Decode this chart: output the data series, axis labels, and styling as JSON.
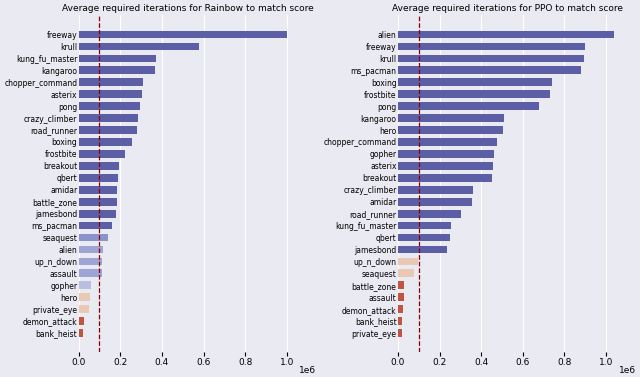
{
  "rainbow_title": "Average required iterations for Rainbow to match score",
  "ppo_title": "Average required iterations for PPO to match score",
  "rainbow_data": {
    "freeway": 1000000,
    "krull": 580000,
    "kung_fu_master": 370000,
    "kangaroo": 365000,
    "chopper_command": 310000,
    "asterix": 305000,
    "pong": 295000,
    "crazy_climber": 285000,
    "road_runner": 280000,
    "boxing": 255000,
    "frostbite": 225000,
    "breakout": 195000,
    "qbert": 190000,
    "amidar": 185000,
    "battle_zone": 185000,
    "jamesbond": 180000,
    "ms_pacman": 160000,
    "seaquest": 140000,
    "alien": 115000,
    "up_n_down": 110000,
    "assault": 110000,
    "gopher": 60000,
    "hero": 55000,
    "private_eye": 50000,
    "demon_attack": 25000,
    "bank_heist": 22000
  },
  "rainbow_colors": {
    "freeway": "#5c5fa5",
    "krull": "#5c5fa5",
    "kung_fu_master": "#5c5fa5",
    "kangaroo": "#5c5fa5",
    "chopper_command": "#5c5fa5",
    "asterix": "#5c5fa5",
    "pong": "#5c5fa5",
    "crazy_climber": "#5c5fa5",
    "road_runner": "#5c5fa5",
    "boxing": "#5c5fa5",
    "frostbite": "#5c5fa5",
    "breakout": "#5c5fa5",
    "qbert": "#5c5fa5",
    "amidar": "#5c5fa5",
    "battle_zone": "#5c5fa5",
    "jamesbond": "#5c5fa5",
    "ms_pacman": "#5c5fa5",
    "seaquest": "#8c93cc",
    "alien": "#9ea5d4",
    "up_n_down": "#9ea5d4",
    "assault": "#9ea5d4",
    "gopher": "#b8bfdf",
    "hero": "#eac9b4",
    "private_eye": "#eac9b4",
    "demon_attack": "#c25540",
    "bank_heist": "#c25540"
  },
  "ppo_data": {
    "alien": 1040000,
    "freeway": 900000,
    "krull": 895000,
    "ms_pacman": 880000,
    "boxing": 740000,
    "frostbite": 730000,
    "pong": 680000,
    "kangaroo": 510000,
    "hero": 505000,
    "chopper_command": 475000,
    "gopher": 460000,
    "asterix": 455000,
    "breakout": 450000,
    "crazy_climber": 360000,
    "amidar": 355000,
    "road_runner": 305000,
    "kung_fu_master": 255000,
    "qbert": 250000,
    "jamesbond": 235000,
    "up_n_down": 95000,
    "seaquest": 75000,
    "battle_zone": 30000,
    "assault": 28000,
    "demon_attack": 22000,
    "bank_heist": 20000,
    "private_eye": 18000
  },
  "ppo_colors": {
    "alien": "#5c5fa5",
    "freeway": "#5c5fa5",
    "krull": "#5c5fa5",
    "ms_pacman": "#5c5fa5",
    "boxing": "#5c5fa5",
    "frostbite": "#5c5fa5",
    "pong": "#5c5fa5",
    "kangaroo": "#5c5fa5",
    "hero": "#5c5fa5",
    "chopper_command": "#5c5fa5",
    "gopher": "#5c5fa5",
    "asterix": "#5c5fa5",
    "breakout": "#5c5fa5",
    "crazy_climber": "#5c5fa5",
    "amidar": "#5c5fa5",
    "road_runner": "#5c5fa5",
    "kung_fu_master": "#5c5fa5",
    "qbert": "#5c5fa5",
    "jamesbond": "#5c5fa5",
    "up_n_down": "#eac9b4",
    "seaquest": "#eac9b4",
    "battle_zone": "#c25540",
    "assault": "#c25540",
    "demon_attack": "#c25540",
    "bank_heist": "#c25540",
    "private_eye": "#c25540"
  },
  "vline_x": 100000,
  "xlim": [
    0,
    1050000
  ],
  "bg_color": "#eaeaf2",
  "grid_color": "#ffffff",
  "xticks": [
    0,
    200000,
    400000,
    600000,
    800000,
    1000000
  ],
  "xticklabels": [
    "0.0",
    "0.2",
    "0.4",
    "0.6",
    "0.8",
    "1.0"
  ]
}
